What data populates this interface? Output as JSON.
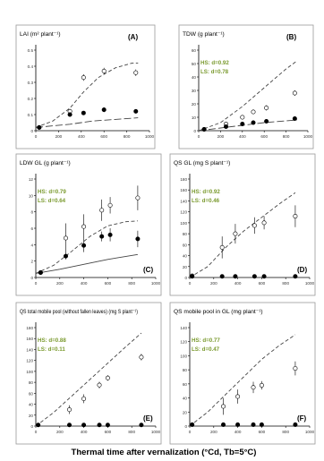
{
  "figure": {
    "xlabel": "Thermal time after vernalization (°Cd, Tb=5°C)"
  },
  "colors": {
    "open": "#ffffff",
    "closed": "#000000",
    "stats": "#7a9a2e",
    "frame": "#999999",
    "line": "#444444"
  },
  "chart_data": [
    {
      "id": "A",
      "type": "scatter",
      "panel_label": "(A)",
      "title": "LAI (m² plant⁻¹)",
      "stats": [
        "",
        ""
      ],
      "xlim": [
        0,
        1000
      ],
      "ylim": [
        0,
        0.5
      ],
      "xticks": [
        0,
        200,
        400,
        600,
        800,
        1000
      ],
      "yticks": [
        0,
        0.1,
        0.2,
        0.3,
        0.4,
        0.5
      ],
      "xtick_labels": [
        "0",
        "200",
        "400",
        "600",
        "800",
        "1000"
      ],
      "ytick_labels": [
        "0",
        "0.1",
        "0.2",
        "0.3",
        "0.4",
        "0.5"
      ],
      "show_xticks": true,
      "series": [
        {
          "marker": "open",
          "x": [
            30,
            300,
            420,
            600,
            880
          ],
          "y": [
            0.02,
            0.12,
            0.33,
            0.37,
            0.36
          ],
          "err": [
            0,
            0.015,
            0.02,
            0.02,
            0.02
          ]
        },
        {
          "marker": "closed",
          "x": [
            30,
            300,
            420,
            600,
            880
          ],
          "y": [
            0.02,
            0.1,
            0.11,
            0.13,
            0.12
          ],
          "err": [
            0,
            0.008,
            0.01,
            0.015,
            0.012
          ]
        }
      ],
      "lines": [
        {
          "style": "dash",
          "x": [
            0,
            150,
            300,
            420,
            550,
            700,
            850,
            900
          ],
          "y": [
            0.02,
            0.06,
            0.14,
            0.24,
            0.33,
            0.39,
            0.42,
            0.42
          ]
        },
        {
          "style": "longdash",
          "x": [
            0,
            300,
            500,
            700,
            900
          ],
          "y": [
            0.02,
            0.04,
            0.06,
            0.07,
            0.08
          ]
        }
      ]
    },
    {
      "id": "B",
      "type": "scatter",
      "panel_label": "(B)",
      "title": "TDW (g plant⁻¹)",
      "stats": [
        "HS: d=0.92",
        "LS: d=0.78"
      ],
      "xlim": [
        0,
        1000
      ],
      "ylim": [
        0,
        60
      ],
      "xticks": [
        0,
        200,
        400,
        600,
        800,
        1000
      ],
      "yticks": [
        0,
        10,
        20,
        30,
        40,
        50,
        60
      ],
      "xtick_labels": [
        "0",
        "200",
        "400",
        "600",
        "800",
        "1000"
      ],
      "ytick_labels": [
        "0",
        "10",
        "20",
        "30",
        "40",
        "50",
        "60"
      ],
      "show_xticks": true,
      "series": [
        {
          "marker": "open",
          "x": [
            50,
            250,
            400,
            500,
            620,
            880
          ],
          "y": [
            1,
            5,
            10,
            14,
            17,
            28
          ],
          "err": [
            0,
            1,
            1.5,
            1.5,
            2,
            2
          ]
        },
        {
          "marker": "closed",
          "x": [
            50,
            250,
            400,
            500,
            620,
            880
          ],
          "y": [
            1,
            3,
            5,
            6,
            7,
            9
          ],
          "err": [
            0,
            0.5,
            0.8,
            1,
            1,
            1
          ]
        }
      ],
      "lines": [
        {
          "style": "dash",
          "x": [
            0,
            200,
            400,
            600,
            800,
            900
          ],
          "y": [
            0,
            6,
            18,
            32,
            46,
            52
          ]
        },
        {
          "style": "longdash",
          "x": [
            0,
            200,
            400,
            600,
            900
          ],
          "y": [
            0,
            2,
            4,
            6,
            8
          ]
        }
      ]
    },
    {
      "id": "C",
      "type": "scatter",
      "panel_label": "(C)",
      "title": "LDW GL (g plant⁻¹)",
      "stats": [
        "HS: d=0.79",
        "LS: d=0.64"
      ],
      "xlim": [
        0,
        1000
      ],
      "ylim": [
        0,
        12
      ],
      "xticks": [
        0,
        200,
        400,
        600,
        800,
        1000
      ],
      "yticks": [
        0,
        2,
        4,
        6,
        8,
        10,
        12
      ],
      "xtick_labels": [
        "0",
        "200",
        "400",
        "600",
        "800",
        "1000"
      ],
      "ytick_labels": [
        "0",
        "2",
        "4",
        "6",
        "8",
        "10",
        "12"
      ],
      "show_xticks": true,
      "series": [
        {
          "marker": "open",
          "x": [
            40,
            250,
            400,
            550,
            620,
            850
          ],
          "y": [
            0.6,
            4.8,
            6.2,
            8.2,
            8.8,
            9.7
          ],
          "err": [
            0,
            1.8,
            1.5,
            1.3,
            1.0,
            1.5
          ]
        },
        {
          "marker": "closed",
          "x": [
            40,
            250,
            400,
            550,
            620,
            850
          ],
          "y": [
            0.6,
            2.6,
            3.9,
            5.0,
            5.2,
            4.7
          ],
          "err": [
            0,
            0.4,
            0.8,
            0.6,
            0.8,
            1.0
          ]
        }
      ],
      "lines": [
        {
          "style": "dash",
          "x": [
            0,
            150,
            300,
            450,
            600,
            750,
            850
          ],
          "y": [
            0.5,
            1.5,
            3.2,
            5.0,
            6.3,
            6.8,
            6.9
          ]
        },
        {
          "style": "solid",
          "x": [
            0,
            200,
            400,
            600,
            850
          ],
          "y": [
            0.5,
            1.0,
            1.6,
            2.2,
            2.8
          ]
        }
      ]
    },
    {
      "id": "D",
      "type": "scatter",
      "panel_label": "(D)",
      "title": "QS GL (mg S plant⁻¹)",
      "stats": [
        "HS: d=0.92",
        "LS: d=0.46"
      ],
      "xlim": [
        0,
        1000
      ],
      "ylim": [
        0,
        180
      ],
      "xticks": [
        0,
        200,
        400,
        600,
        800,
        1000
      ],
      "yticks": [
        0,
        20,
        40,
        60,
        80,
        100,
        120,
        140,
        160,
        180
      ],
      "xtick_labels": [
        "0",
        "200",
        "400",
        "600",
        "800",
        "1000"
      ],
      "ytick_labels": [
        "0",
        "20",
        "40",
        "60",
        "80",
        "100",
        "120",
        "140",
        "160",
        "180"
      ],
      "show_xticks": true,
      "series": [
        {
          "marker": "open",
          "x": [
            20,
            270,
            380,
            540,
            620,
            880
          ],
          "y": [
            3,
            55,
            80,
            95,
            100,
            112
          ],
          "err": [
            0,
            20,
            18,
            15,
            12,
            20
          ]
        },
        {
          "marker": "closed",
          "x": [
            20,
            270,
            380,
            540,
            620,
            880
          ],
          "y": [
            2,
            2,
            2,
            2,
            2,
            2
          ],
          "err": [
            0,
            0,
            0,
            0,
            0,
            0
          ]
        }
      ],
      "lines": [
        {
          "style": "dash",
          "x": [
            0,
            150,
            300,
            450,
            600,
            750,
            880
          ],
          "y": [
            0,
            20,
            55,
            85,
            110,
            135,
            155
          ]
        }
      ]
    },
    {
      "id": "E",
      "type": "scatter",
      "panel_label": "(E)",
      "title": "QS total mobile pool (without fallen leaves) (mg S plant⁻¹)",
      "stats": [
        "HS: d=0.88",
        "LS: d=0.11"
      ],
      "xlim": [
        0,
        1000
      ],
      "ylim": [
        0,
        180
      ],
      "xticks": [
        0,
        200,
        400,
        600,
        800,
        1000
      ],
      "yticks": [
        0,
        20,
        40,
        60,
        80,
        100,
        120,
        140,
        160,
        180
      ],
      "xtick_labels": [
        "0",
        "200",
        "400",
        "600",
        "800",
        "1000"
      ],
      "ytick_labels": [
        "0",
        "20",
        "40",
        "60",
        "80",
        "100",
        "120",
        "140",
        "160",
        "180"
      ],
      "show_xticks": true,
      "series": [
        {
          "marker": "open",
          "x": [
            280,
            400,
            530,
            600,
            880
          ],
          "y": [
            30,
            50,
            75,
            88,
            126
          ],
          "err": [
            8,
            8,
            6,
            5,
            6
          ]
        },
        {
          "marker": "closed",
          "x": [
            20,
            280,
            400,
            530,
            600,
            880
          ],
          "y": [
            2,
            2,
            2,
            2,
            2,
            2
          ],
          "err": [
            0,
            0,
            0,
            0,
            0,
            0
          ]
        }
      ],
      "lines": [
        {
          "style": "dash",
          "x": [
            0,
            150,
            300,
            450,
            600,
            750,
            880
          ],
          "y": [
            0,
            25,
            55,
            85,
            115,
            145,
            170
          ]
        }
      ]
    },
    {
      "id": "F",
      "type": "scatter",
      "panel_label": "(F)",
      "title": "QS mobile pool in GL (mg plant⁻¹)",
      "stats": [
        "HS: d=0.77",
        "LS: d=0.47"
      ],
      "xlim": [
        0,
        1000
      ],
      "ylim": [
        0,
        140
      ],
      "xticks": [
        0,
        200,
        400,
        600,
        800,
        1000
      ],
      "yticks": [
        0,
        20,
        40,
        60,
        80,
        100,
        120,
        140
      ],
      "xtick_labels": [
        "0",
        "200",
        "400",
        "600",
        "800",
        "1000"
      ],
      "ytick_labels": [
        "0",
        "20",
        "40",
        "60",
        "80",
        "100",
        "120",
        "140"
      ],
      "show_xticks": true,
      "series": [
        {
          "marker": "open",
          "x": [
            280,
            400,
            530,
            600,
            880
          ],
          "y": [
            28,
            42,
            55,
            58,
            82
          ],
          "err": [
            12,
            10,
            8,
            6,
            10
          ]
        },
        {
          "marker": "closed",
          "x": [
            20,
            280,
            400,
            530,
            600,
            880
          ],
          "y": [
            2,
            2,
            2,
            2,
            2,
            2
          ],
          "err": [
            0,
            0,
            0,
            0,
            0,
            0
          ]
        }
      ],
      "lines": [
        {
          "style": "dash",
          "x": [
            0,
            150,
            300,
            450,
            600,
            750,
            880
          ],
          "y": [
            0,
            20,
            45,
            70,
            95,
            115,
            130
          ]
        }
      ]
    }
  ]
}
